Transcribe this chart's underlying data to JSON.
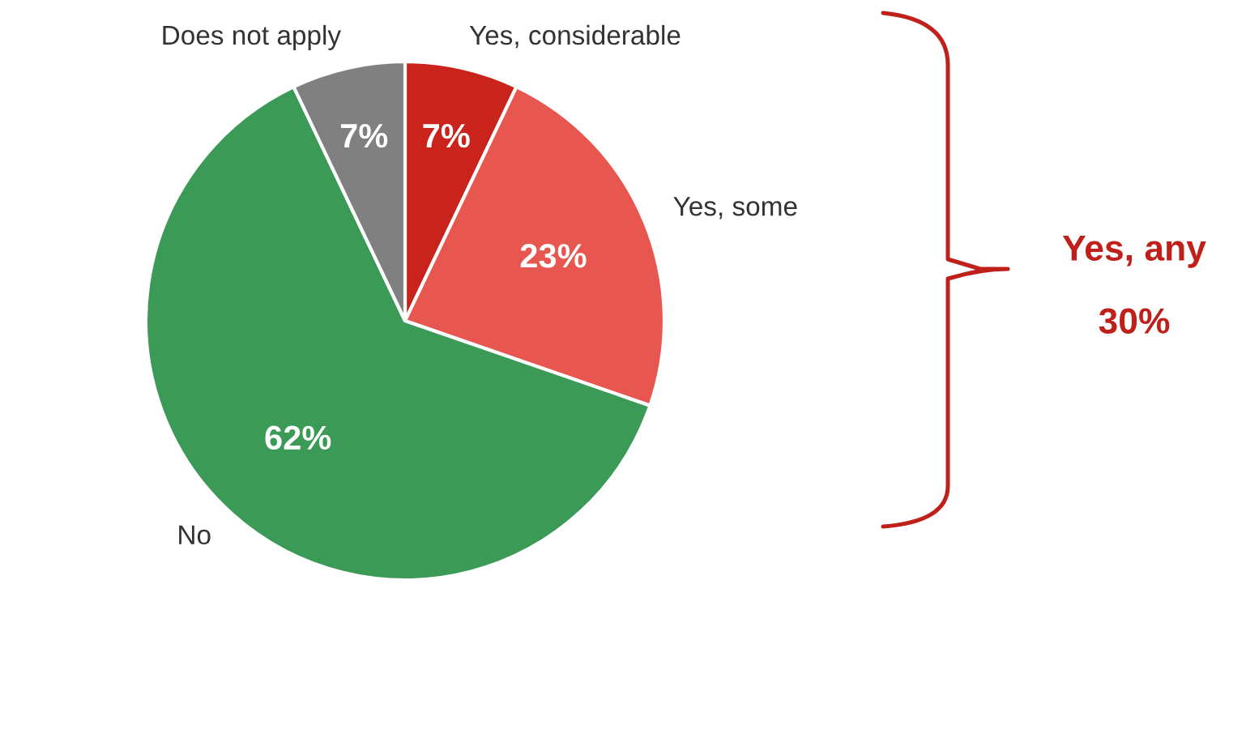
{
  "chart_data": {
    "type": "pie",
    "categories": [
      "Yes, considerable",
      "Yes, some",
      "No",
      "Does not apply"
    ],
    "values": [
      7,
      23,
      62,
      7
    ],
    "colors": [
      "#c9231b",
      "#e8574f",
      "#3a9a56",
      "#808080"
    ],
    "value_labels": [
      "7%",
      "23%",
      "62%",
      "7%"
    ],
    "annotations": [
      "Yes, any",
      "30%"
    ],
    "legend": false
  }
}
